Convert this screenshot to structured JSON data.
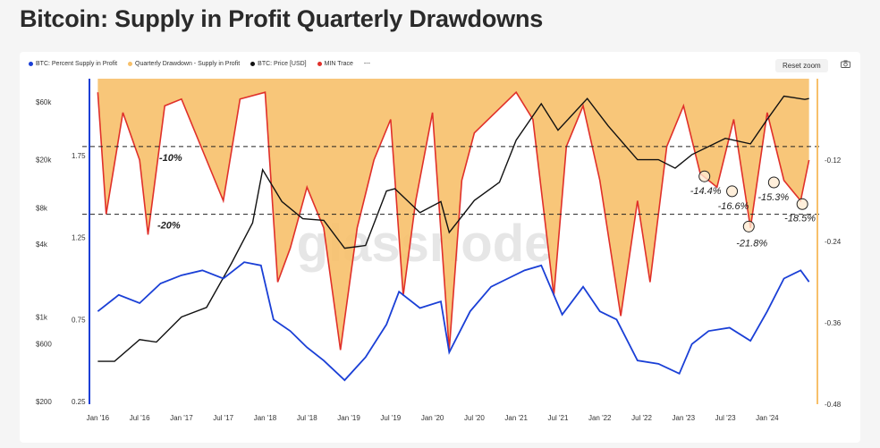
{
  "page": {
    "title": "Bitcoin: Supply in Profit Quarterly Drawdowns"
  },
  "legend": [
    {
      "label": "BTC: Percent Supply in Profit",
      "color": "#1a3fd6"
    },
    {
      "label": "Quarterly Drawdown - Supply in Profit",
      "color": "#f7c06a"
    },
    {
      "label": "BTC: Price [USD]",
      "color": "#111111"
    },
    {
      "label": "MIN Trace",
      "color": "#e0302a"
    },
    {
      "label": "---",
      "color": ""
    }
  ],
  "toolbar": {
    "reset_label": "Reset zoom",
    "camera_icon": "camera-icon"
  },
  "watermark": "glassnode",
  "chart_data": {
    "type": "line",
    "title": "Bitcoin: Supply in Profit Quarterly Drawdowns",
    "x_ticks": [
      "Jan '16",
      "Jul '16",
      "Jan '17",
      "Jul '17",
      "Jan '18",
      "Jul '18",
      "Jan '19",
      "Jul '19",
      "Jan '20",
      "Jul '20",
      "Jan '21",
      "Jul '21",
      "Jan '22",
      "Jul '22",
      "Jan '23",
      "Jul '23",
      "Jan '24"
    ],
    "price_axis": {
      "scale": "log",
      "ticks": [
        "$200",
        "$600",
        "$1k",
        "$4k",
        "$8k",
        "$20k",
        "$60k"
      ],
      "tick_values": [
        200,
        600,
        1000,
        4000,
        8000,
        20000,
        60000
      ]
    },
    "supply_axis": {
      "ticks": [
        "0.25",
        "0.75",
        "1.25",
        "1.75"
      ],
      "tick_values": [
        0.25,
        0.75,
        1.25,
        1.75
      ],
      "range": [
        0.25,
        2.0
      ]
    },
    "drawdown_axis": {
      "ticks": [
        "-0.12",
        "-0.24",
        "-0.36",
        "-0.48"
      ],
      "tick_values": [
        -0.12,
        -0.24,
        -0.36,
        -0.48
      ],
      "range": [
        -0.48,
        0.0
      ]
    },
    "reference_lines": [
      {
        "label": "-10%",
        "value": -0.1
      },
      {
        "label": "-20%",
        "value": -0.2
      }
    ],
    "annotations": [
      {
        "label": "-14.4%",
        "date": 2023.25,
        "value": -0.144
      },
      {
        "label": "-16.6%",
        "date": 2023.58,
        "value": -0.166
      },
      {
        "label": "-21.8%",
        "date": 2023.78,
        "value": -0.218
      },
      {
        "label": "-15.3%",
        "date": 2024.08,
        "value": -0.153
      },
      {
        "label": "-18.5%",
        "date": 2024.42,
        "value": -0.185
      }
    ],
    "series": [
      {
        "name": "BTC: Percent Supply in Profit",
        "color": "#1a3fd6",
        "x": [
          2016.0,
          2016.25,
          2016.5,
          2016.75,
          2017.0,
          2017.25,
          2017.5,
          2017.75,
          2017.95,
          2018.1,
          2018.3,
          2018.5,
          2018.7,
          2018.95,
          2019.2,
          2019.45,
          2019.6,
          2019.85,
          2020.1,
          2020.2,
          2020.45,
          2020.7,
          2020.9,
          2021.1,
          2021.3,
          2021.55,
          2021.8,
          2022.0,
          2022.2,
          2022.45,
          2022.7,
          2022.95,
          2023.1,
          2023.3,
          2023.55,
          2023.8,
          2024.0,
          2024.2,
          2024.4,
          2024.5
        ],
        "values": [
          0.8,
          0.9,
          0.85,
          0.97,
          1.02,
          1.05,
          1.0,
          1.1,
          1.08,
          0.75,
          0.68,
          0.58,
          0.5,
          0.38,
          0.52,
          0.72,
          0.92,
          0.82,
          0.86,
          0.55,
          0.8,
          0.95,
          1.0,
          1.05,
          1.08,
          0.78,
          0.95,
          0.8,
          0.75,
          0.5,
          0.48,
          0.42,
          0.6,
          0.68,
          0.7,
          0.62,
          0.8,
          1.0,
          1.05,
          0.98
        ]
      },
      {
        "name": "Quarterly Drawdown - Supply in Profit",
        "color": "#f7c06a",
        "x": [
          2016.0,
          2016.1,
          2016.3,
          2016.5,
          2016.6,
          2016.8,
          2017.0,
          2017.3,
          2017.5,
          2017.7,
          2018.0,
          2018.15,
          2018.3,
          2018.5,
          2018.7,
          2018.9,
          2019.1,
          2019.3,
          2019.5,
          2019.65,
          2019.8,
          2020.0,
          2020.2,
          2020.35,
          2020.5,
          2020.75,
          2021.0,
          2021.2,
          2021.45,
          2021.6,
          2021.8,
          2022.0,
          2022.25,
          2022.45,
          2022.6,
          2022.8,
          2023.0,
          2023.2,
          2023.4,
          2023.6,
          2023.8,
          2024.0,
          2024.2,
          2024.4,
          2024.5
        ],
        "values": [
          -0.02,
          -0.2,
          -0.05,
          -0.12,
          -0.23,
          -0.04,
          -0.03,
          -0.12,
          -0.18,
          -0.03,
          -0.02,
          -0.3,
          -0.25,
          -0.16,
          -0.22,
          -0.4,
          -0.22,
          -0.12,
          -0.06,
          -0.32,
          -0.18,
          -0.05,
          -0.4,
          -0.15,
          -0.08,
          -0.05,
          -0.02,
          -0.06,
          -0.32,
          -0.1,
          -0.04,
          -0.15,
          -0.35,
          -0.18,
          -0.3,
          -0.1,
          -0.04,
          -0.14,
          -0.16,
          -0.06,
          -0.22,
          -0.05,
          -0.15,
          -0.18,
          -0.12
        ]
      },
      {
        "name": "BTC: Price [USD]",
        "color": "#111111",
        "x": [
          2016.0,
          2016.2,
          2016.5,
          2016.7,
          2017.0,
          2017.3,
          2017.6,
          2017.85,
          2017.97,
          2018.2,
          2018.45,
          2018.7,
          2018.95,
          2019.2,
          2019.45,
          2019.55,
          2019.85,
          2020.1,
          2020.2,
          2020.5,
          2020.8,
          2021.0,
          2021.3,
          2021.5,
          2021.85,
          2022.1,
          2022.45,
          2022.7,
          2022.9,
          2023.1,
          2023.5,
          2023.8,
          2024.0,
          2024.2,
          2024.45,
          2024.5
        ],
        "values": [
          430,
          430,
          650,
          620,
          1000,
          1200,
          2800,
          6000,
          16500,
          9000,
          6500,
          6300,
          3700,
          3900,
          11000,
          11500,
          7300,
          9000,
          5000,
          9200,
          13000,
          29000,
          58000,
          35000,
          64000,
          38000,
          20000,
          20000,
          17000,
          22000,
          30000,
          27000,
          43000,
          67000,
          63000,
          64000
        ]
      },
      {
        "name": "MIN Trace",
        "color": "#e0302a",
        "x": [
          2016.0,
          2016.1,
          2016.3,
          2016.5,
          2016.6,
          2016.8,
          2017.0,
          2017.3,
          2017.5,
          2017.7,
          2018.0,
          2018.15,
          2018.3,
          2018.5,
          2018.7,
          2018.9,
          2019.1,
          2019.3,
          2019.5,
          2019.65,
          2019.8,
          2020.0,
          2020.2,
          2020.35,
          2020.5,
          2020.75,
          2021.0,
          2021.2,
          2021.45,
          2021.6,
          2021.8,
          2022.0,
          2022.25,
          2022.45,
          2022.6,
          2022.8,
          2023.0,
          2023.2,
          2023.4,
          2023.6,
          2023.8,
          2024.0,
          2024.2,
          2024.4,
          2024.5
        ],
        "values": [
          -0.02,
          -0.2,
          -0.05,
          -0.12,
          -0.23,
          -0.04,
          -0.03,
          -0.12,
          -0.18,
          -0.03,
          -0.02,
          -0.3,
          -0.25,
          -0.16,
          -0.22,
          -0.4,
          -0.22,
          -0.12,
          -0.06,
          -0.32,
          -0.18,
          -0.05,
          -0.4,
          -0.15,
          -0.08,
          -0.05,
          -0.02,
          -0.06,
          -0.32,
          -0.1,
          -0.04,
          -0.15,
          -0.35,
          -0.18,
          -0.3,
          -0.1,
          -0.04,
          -0.14,
          -0.16,
          -0.06,
          -0.22,
          -0.05,
          -0.15,
          -0.18,
          -0.12
        ]
      }
    ]
  }
}
